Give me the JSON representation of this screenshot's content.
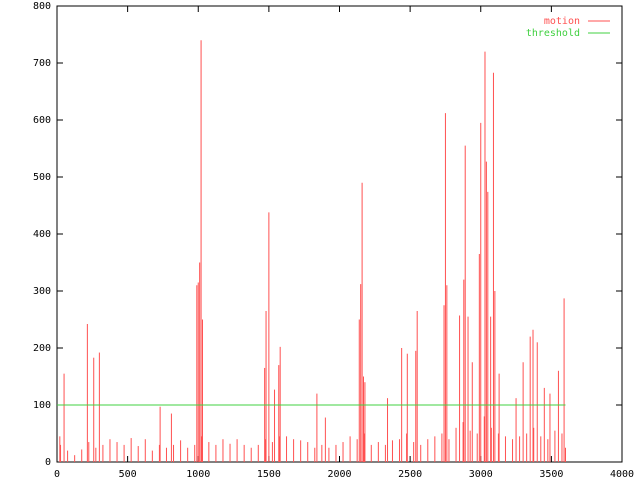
{
  "chart_data": {
    "type": "line",
    "xlim": [
      0,
      4000
    ],
    "xticks": [
      0,
      500,
      1000,
      1500,
      2000,
      2500,
      3000,
      3500,
      4000
    ],
    "ylim": [
      0,
      800
    ],
    "yticks": [
      0,
      100,
      200,
      300,
      400,
      500,
      600,
      700,
      800
    ],
    "legend": "top-right",
    "series": [
      {
        "name": "motion",
        "color": "#ff5050",
        "style": "impulses",
        "x": [
          20,
          25,
          50,
          75,
          125,
          175,
          215,
          225,
          260,
          275,
          300,
          325,
          375,
          425,
          475,
          525,
          575,
          625,
          675,
          725,
          730,
          775,
          810,
          825,
          875,
          925,
          975,
          990,
          1000,
          1010,
          1020,
          1025,
          1030,
          1075,
          1125,
          1175,
          1225,
          1275,
          1325,
          1375,
          1425,
          1470,
          1475,
          1480,
          1500,
          1525,
          1540,
          1570,
          1575,
          1580,
          1625,
          1675,
          1725,
          1775,
          1825,
          1840,
          1875,
          1900,
          1925,
          1975,
          2025,
          2075,
          2125,
          2140,
          2150,
          2160,
          2170,
          2175,
          2180,
          2225,
          2275,
          2325,
          2340,
          2375,
          2425,
          2440,
          2475,
          2480,
          2525,
          2540,
          2550,
          2575,
          2625,
          2675,
          2725,
          2740,
          2750,
          2760,
          2775,
          2825,
          2850,
          2875,
          2880,
          2890,
          2910,
          2925,
          2940,
          2975,
          2990,
          3000,
          3025,
          3030,
          3040,
          3050,
          3070,
          3075,
          3090,
          3100,
          3125,
          3130,
          3175,
          3225,
          3250,
          3275,
          3300,
          3325,
          3350,
          3370,
          3375,
          3400,
          3425,
          3450,
          3475,
          3490,
          3525,
          3550,
          3575,
          3590,
          3600
        ],
        "values": [
          45,
          30,
          155,
          20,
          12,
          22,
          242,
          35,
          183,
          25,
          192,
          30,
          40,
          35,
          30,
          42,
          28,
          40,
          20,
          30,
          97,
          25,
          85,
          30,
          38,
          25,
          30,
          310,
          315,
          350,
          740,
          45,
          250,
          35,
          30,
          40,
          32,
          40,
          30,
          25,
          30,
          165,
          40,
          265,
          438,
          35,
          127,
          170,
          45,
          202,
          45,
          40,
          38,
          35,
          25,
          120,
          30,
          78,
          25,
          30,
          35,
          45,
          40,
          250,
          312,
          490,
          150,
          50,
          140,
          30,
          35,
          30,
          112,
          38,
          40,
          200,
          50,
          190,
          35,
          195,
          265,
          30,
          40,
          45,
          50,
          275,
          612,
          310,
          40,
          60,
          257,
          70,
          320,
          555,
          255,
          55,
          175,
          50,
          365,
          595,
          80,
          720,
          527,
          474,
          255,
          60,
          683,
          300,
          50,
          155,
          45,
          40,
          112,
          45,
          175,
          50,
          220,
          232,
          60,
          210,
          45,
          130,
          40,
          120,
          55,
          160,
          50,
          287,
          25
        ]
      },
      {
        "name": "threshold",
        "color": "#40d040",
        "style": "lines",
        "x": [
          0,
          3600
        ],
        "values": [
          100,
          100
        ]
      }
    ]
  }
}
